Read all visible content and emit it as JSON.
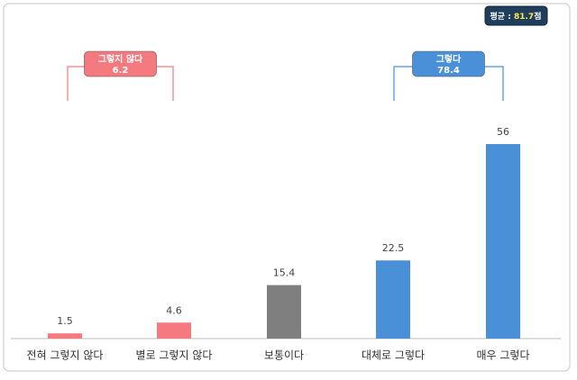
{
  "chart_data": {
    "type": "bar",
    "categories": [
      "전혀 그렇지 않다",
      "별로 그렇지 않다",
      "보통이다",
      "대체로 그렇다",
      "매우 그렇다"
    ],
    "values": [
      1.5,
      4.6,
      15.4,
      22.5,
      56
    ],
    "colors": [
      "#f47a80",
      "#f47a80",
      "#7f7f7f",
      "#4a90d9",
      "#4a90d9"
    ],
    "annotations": [
      {
        "label": "그렇지 않다",
        "value": 6.2,
        "color": "#f47a80"
      },
      {
        "label": "그렇다",
        "value": 78.4,
        "color": "#4a90d9"
      }
    ],
    "average": {
      "label": "평균 :",
      "value": 81.7,
      "unit": "점"
    }
  }
}
